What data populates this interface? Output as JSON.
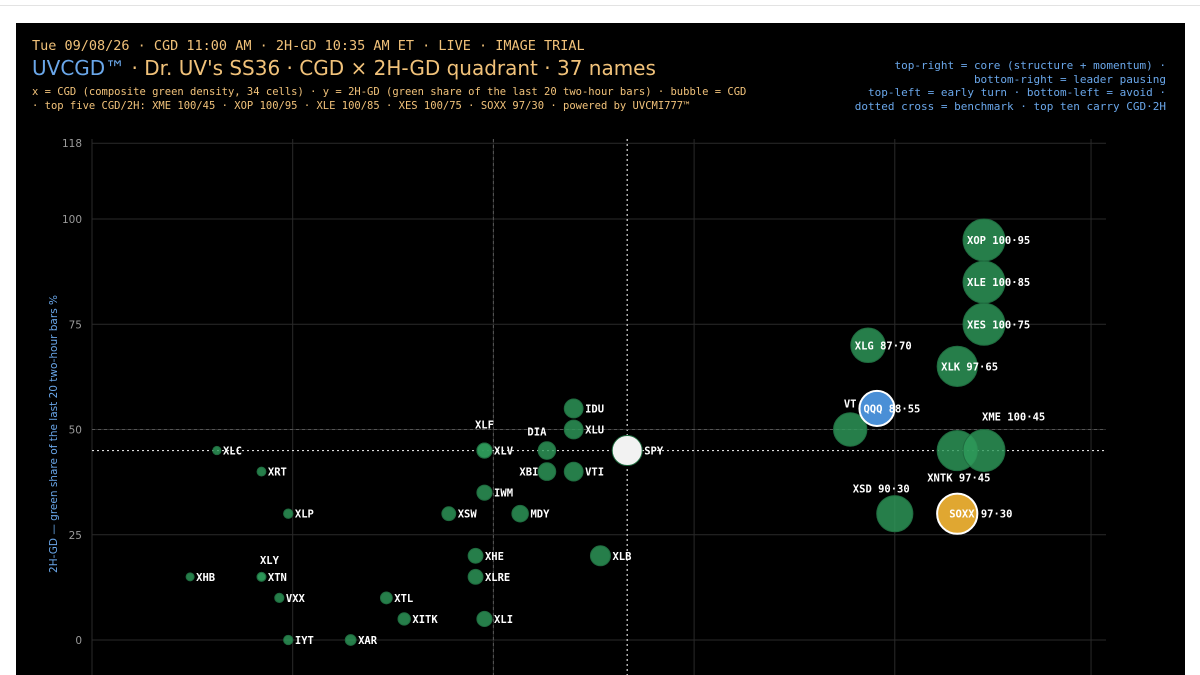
{
  "header": {
    "status_line": "Tue 09/08/26 · CGD 11:00 AM · 2H-GD 10:35 AM ET · LIVE · IMAGE TRIAL",
    "brand": "UVCGD™",
    "title_rest": " · Dr. UV's SS36 · CGD × 2H-GD quadrant · 37 names",
    "subtitle_1": "x = CGD (composite green density, 34 cells) · y = 2H-GD (green share of the last 20 two-hour bars) · bubble = CGD",
    "subtitle_2": "· top five CGD/2H: XME 100/45 · XOP 100/95 · XLE 100/85 · XES 100/75 · SOXX 97/30 · powered by UVCMI777™"
  },
  "legend": {
    "line_1": "top-right = core (structure + momentum) ·",
    "line_2": "bottom-right = leader pausing",
    "line_3": "top-left = early turn · bottom-left = avoid ·",
    "line_4": "dotted cross = benchmark · top ten carry CGD·2H"
  },
  "colors": {
    "background": "#000000",
    "header_text": "#f1c27a",
    "accent_blue": "#6aa7ea",
    "bubble_green": "#2e9a5a",
    "bubble_gold": "#e0a731",
    "bubble_blue": "#4a8fd6",
    "benchmark": "#f2f2f2",
    "grid": "#2a2a2a"
  },
  "chart_data": {
    "type": "scatter",
    "ylabel": "2H-GD — green share of the last 20 two-hour bars %",
    "xlabel": "",
    "ylim": [
      -2,
      118
    ],
    "yticks": [
      0,
      25,
      50,
      75,
      100,
      118
    ],
    "xlim": [
      0,
      104
    ],
    "grid": true,
    "benchmark": {
      "x": 60,
      "y": 45
    },
    "points": [
      {
        "name": "XOP",
        "x": 100,
        "y": 95,
        "label": "XOP 100·95",
        "color": "green"
      },
      {
        "name": "XLE",
        "x": 100,
        "y": 85,
        "label": "XLE 100·85",
        "color": "green"
      },
      {
        "name": "XES",
        "x": 100,
        "y": 75,
        "label": "XES 100·75",
        "color": "green"
      },
      {
        "name": "XLG",
        "x": 87,
        "y": 70,
        "label": "XLG 87·70",
        "color": "green"
      },
      {
        "name": "XLK",
        "x": 97,
        "y": 65,
        "label": "XLK 97·65",
        "color": "green"
      },
      {
        "name": "QQQ",
        "x": 88,
        "y": 55,
        "label": "QQQ 88·55",
        "color": "blue"
      },
      {
        "name": "VT",
        "x": 85,
        "y": 50,
        "label": "VT",
        "color": "green"
      },
      {
        "name": "XME",
        "x": 100,
        "y": 45,
        "label": "XME 100·45",
        "color": "green"
      },
      {
        "name": "XNTK",
        "x": 97,
        "y": 45,
        "label": "XNTK 97·45",
        "color": "green"
      },
      {
        "name": "XSD",
        "x": 90,
        "y": 30,
        "label": "XSD 90·30",
        "color": "green"
      },
      {
        "name": "SOXX",
        "x": 97,
        "y": 30,
        "label": "SOXX 97·30",
        "color": "gold"
      },
      {
        "name": "SPY",
        "x": 60,
        "y": 45,
        "label": "SPY",
        "color": "white"
      },
      {
        "name": "IDU",
        "x": 54,
        "y": 55,
        "label": "IDU",
        "color": "green"
      },
      {
        "name": "XLU",
        "x": 54,
        "y": 50,
        "label": "XLU",
        "color": "green"
      },
      {
        "name": "XLF",
        "x": 44,
        "y": 45,
        "label": "XLF",
        "color": "green"
      },
      {
        "name": "XLV",
        "x": 44,
        "y": 45,
        "label": "XLV",
        "color": "green"
      },
      {
        "name": "DIA",
        "x": 51,
        "y": 45,
        "label": "DIA",
        "color": "green"
      },
      {
        "name": "XBI",
        "x": 51,
        "y": 40,
        "label": "XBI",
        "color": "green"
      },
      {
        "name": "VTI",
        "x": 54,
        "y": 40,
        "label": "VTI",
        "color": "green"
      },
      {
        "name": "IWM",
        "x": 44,
        "y": 35,
        "label": "IWM",
        "color": "green"
      },
      {
        "name": "XSW",
        "x": 40,
        "y": 30,
        "label": "XSW",
        "color": "green"
      },
      {
        "name": "MDY",
        "x": 48,
        "y": 30,
        "label": "MDY",
        "color": "green"
      },
      {
        "name": "XHE",
        "x": 43,
        "y": 20,
        "label": "XHE",
        "color": "green"
      },
      {
        "name": "XLRE",
        "x": 43,
        "y": 15,
        "label": "XLRE",
        "color": "green"
      },
      {
        "name": "XLB",
        "x": 57,
        "y": 20,
        "label": "XLB",
        "color": "green"
      },
      {
        "name": "XTL",
        "x": 33,
        "y": 10,
        "label": "XTL",
        "color": "green"
      },
      {
        "name": "XITK",
        "x": 35,
        "y": 5,
        "label": "XITK",
        "color": "green"
      },
      {
        "name": "XLI",
        "x": 44,
        "y": 5,
        "label": "XLI",
        "color": "green"
      },
      {
        "name": "XAR",
        "x": 29,
        "y": 0,
        "label": "XAR",
        "color": "green"
      },
      {
        "name": "XLC",
        "x": 14,
        "y": 45,
        "label": "XLC",
        "color": "green"
      },
      {
        "name": "XRT",
        "x": 19,
        "y": 40,
        "label": "XRT",
        "color": "green"
      },
      {
        "name": "XLP",
        "x": 22,
        "y": 30,
        "label": "XLP",
        "color": "green"
      },
      {
        "name": "XLY",
        "x": 19,
        "y": 15,
        "label": "XLY",
        "color": "green"
      },
      {
        "name": "XTN",
        "x": 19,
        "y": 15,
        "label": "XTN",
        "color": "green"
      },
      {
        "name": "XHB",
        "x": 11,
        "y": 15,
        "label": "XHB",
        "color": "green"
      },
      {
        "name": "VXX",
        "x": 21,
        "y": 10,
        "label": "VXX",
        "color": "green"
      },
      {
        "name": "IYT",
        "x": 22,
        "y": 0,
        "label": "IYT",
        "color": "green"
      }
    ]
  }
}
